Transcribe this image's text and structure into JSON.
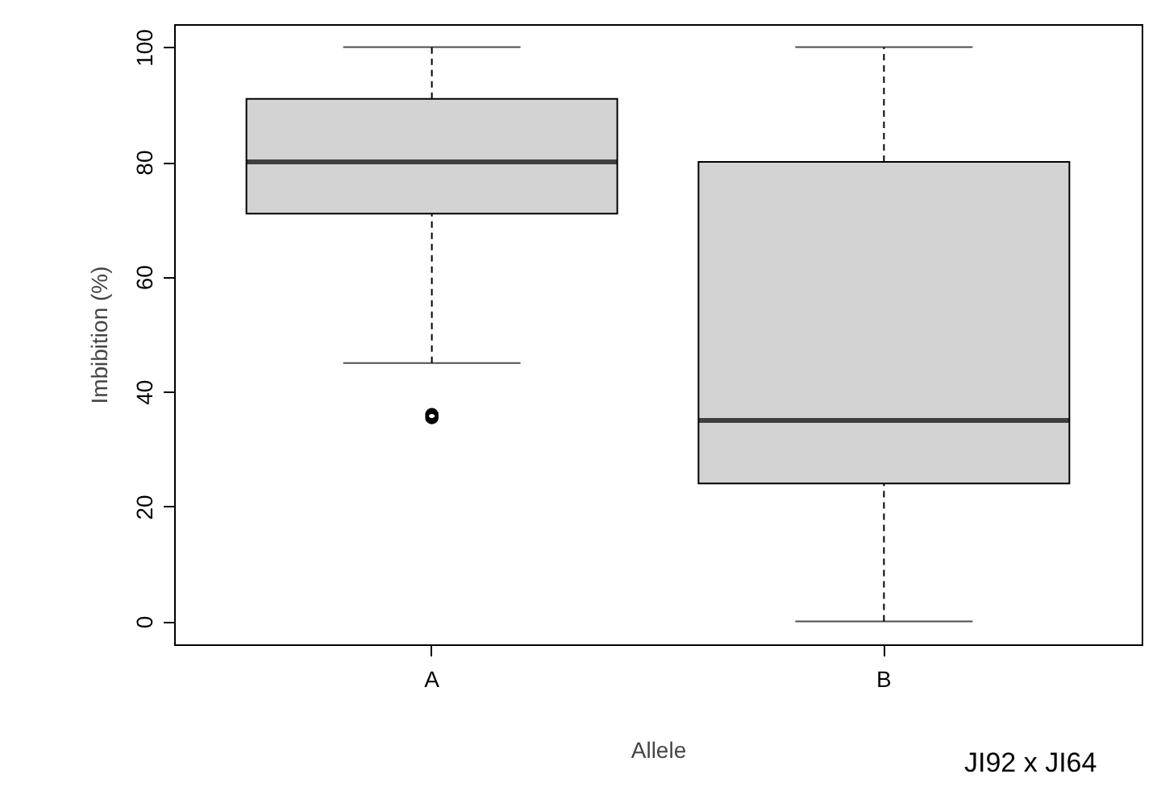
{
  "chart_data": {
    "type": "box",
    "xlabel": "Allele",
    "ylabel": "Imbibition (%)",
    "categories": [
      "A",
      "B"
    ],
    "series": [
      {
        "color": "#d3d3d3",
        "boxes": [
          {
            "low": 45,
            "q1": 71,
            "median": 80,
            "q3": 91,
            "high": 100,
            "outliers": [
              35.5,
              36
            ]
          },
          {
            "low": 0,
            "q1": 24,
            "median": 35,
            "q3": 80,
            "high": 100
          }
        ]
      }
    ],
    "ylim": [
      -4,
      104
    ],
    "yticks": [
      0,
      20,
      40,
      60,
      80,
      100
    ],
    "grid": false,
    "annotations": [
      "JI92 x JI64"
    ]
  }
}
